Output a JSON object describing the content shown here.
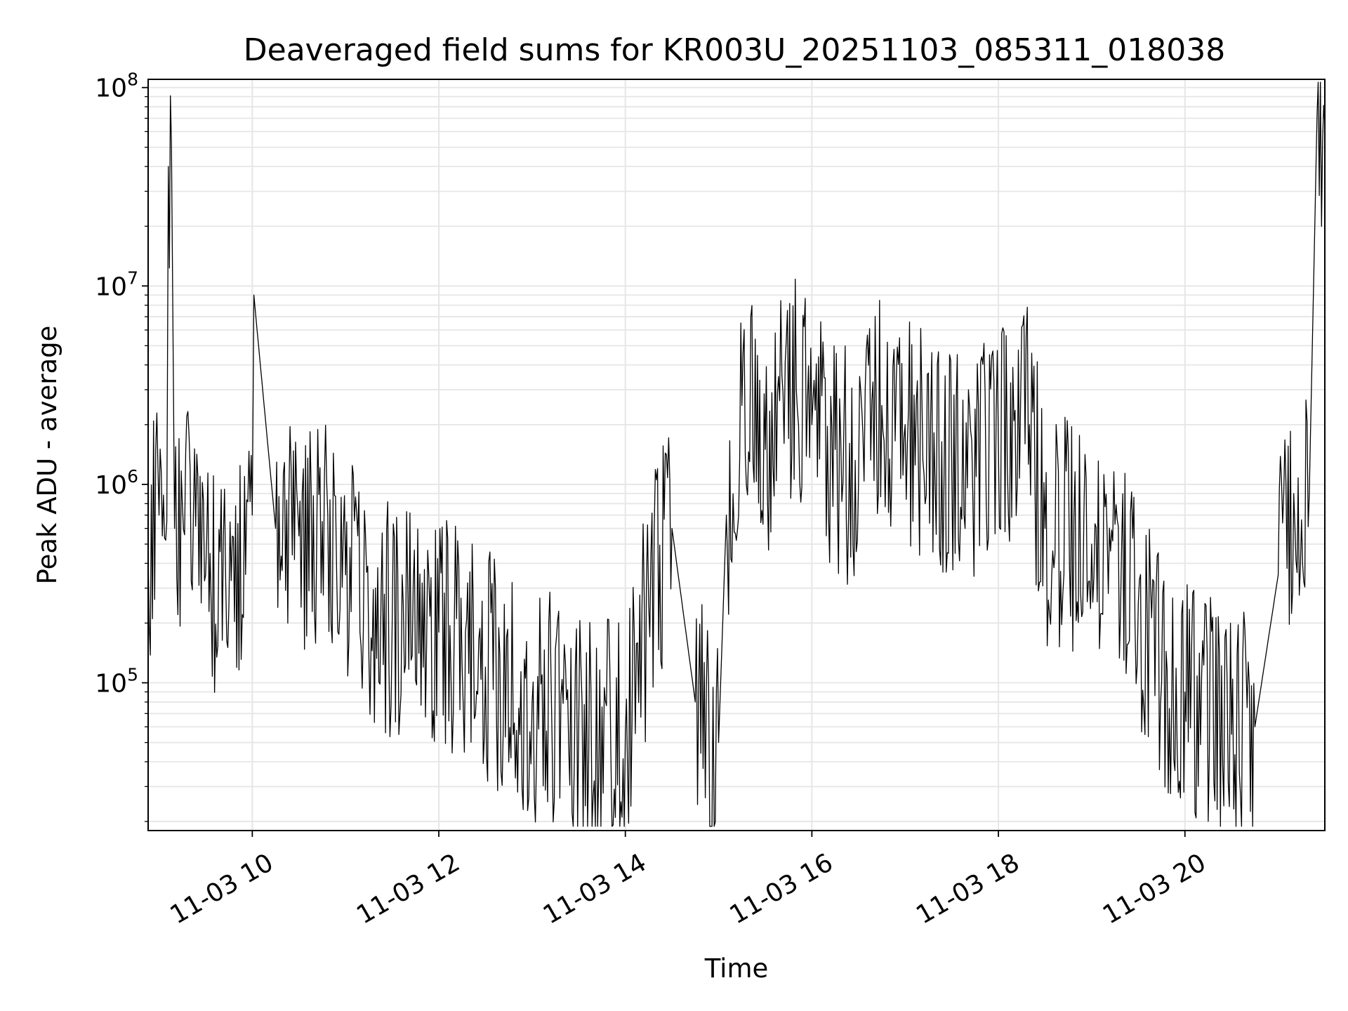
{
  "chart_data": {
    "type": "line",
    "title": "Deaveraged field sums for KR003U_20251103_085311_018038",
    "xlabel": "Time",
    "ylabel": "Peak ADU - average",
    "y_scale": "log",
    "ylim": [
      18000,
      110000000
    ],
    "xlim": [
      "2025-11-03 08:53",
      "2025-11-03 21:30"
    ],
    "grid": true,
    "line_color": "#000000",
    "grid_color": "#e6e6e6",
    "x_ticks": [
      {
        "value": "2025-11-03 10:00",
        "label": "11-03 10"
      },
      {
        "value": "2025-11-03 12:00",
        "label": "11-03 12"
      },
      {
        "value": "2025-11-03 14:00",
        "label": "11-03 14"
      },
      {
        "value": "2025-11-03 16:00",
        "label": "11-03 16"
      },
      {
        "value": "2025-11-03 18:00",
        "label": "11-03 18"
      },
      {
        "value": "2025-11-03 20:00",
        "label": "11-03 20"
      }
    ],
    "y_ticks": [
      {
        "value": 100000,
        "base": "10",
        "exp": "5"
      },
      {
        "value": 1000000,
        "base": "10",
        "exp": "6"
      },
      {
        "value": 10000000,
        "base": "10",
        "exp": "7"
      },
      {
        "value": 100000000,
        "base": "10",
        "exp": "8"
      }
    ],
    "series": [
      {
        "points": [
          [
            "2025-11-03 08:53",
            450000
          ],
          [
            "2025-11-03 09:00",
            700000
          ],
          [
            "2025-11-03 09:05",
            650000
          ],
          [
            "2025-11-03 09:06",
            40000000
          ],
          [
            "2025-11-03 09:08",
            52000000
          ],
          [
            "2025-11-03 09:10",
            600000
          ],
          [
            "2025-11-03 09:15",
            800000
          ],
          [
            "2025-11-03 09:20",
            1200000
          ],
          [
            "2025-11-03 09:25",
            1100000
          ],
          [
            "2025-11-03 09:30",
            350000
          ],
          [
            "2025-11-03 09:45",
            250000
          ],
          [
            "2025-11-03 10:00",
            700000
          ],
          [
            "2025-11-03 10:01",
            9000000
          ],
          [
            "2025-11-03 10:15",
            600000
          ],
          [
            "2025-11-03 10:30",
            550000
          ],
          [
            "2025-11-03 10:45",
            650000
          ],
          [
            "2025-11-03 11:00",
            350000
          ],
          [
            "2025-11-03 11:30",
            200000
          ],
          [
            "2025-11-03 12:00",
            180000
          ],
          [
            "2025-11-03 12:30",
            120000
          ],
          [
            "2025-11-03 13:00",
            80000
          ],
          [
            "2025-11-03 13:30",
            60000
          ],
          [
            "2025-11-03 14:00",
            55000
          ],
          [
            "2025-11-03 14:15",
            250000
          ],
          [
            "2025-11-03 14:30",
            600000
          ],
          [
            "2025-11-03 14:45",
            80000
          ],
          [
            "2025-11-03 15:00",
            50000
          ],
          [
            "2025-11-03 15:05",
            700000
          ],
          [
            "2025-11-03 15:15",
            2500000
          ],
          [
            "2025-11-03 15:30",
            1500000
          ],
          [
            "2025-11-03 15:50",
            3000000
          ],
          [
            "2025-11-03 16:00",
            2000000
          ],
          [
            "2025-11-03 16:15",
            1500000
          ],
          [
            "2025-11-03 16:30",
            1000000
          ],
          [
            "2025-11-03 16:45",
            2500000
          ],
          [
            "2025-11-03 17:00",
            2000000
          ],
          [
            "2025-11-03 17:30",
            1200000
          ],
          [
            "2025-11-03 18:00",
            1500000
          ],
          [
            "2025-11-03 18:20",
            2000000
          ],
          [
            "2025-11-03 18:30",
            600000
          ],
          [
            "2025-11-03 19:00",
            500000
          ],
          [
            "2025-11-03 19:30",
            250000
          ],
          [
            "2025-11-03 19:45",
            100000
          ],
          [
            "2025-11-03 20:00",
            90000
          ],
          [
            "2025-11-03 20:30",
            55000
          ],
          [
            "2025-11-03 20:45",
            60000
          ],
          [
            "2025-11-03 21:00",
            350000
          ],
          [
            "2025-11-03 21:10",
            900000
          ],
          [
            "2025-11-03 21:20",
            900000
          ],
          [
            "2025-11-03 21:25",
            72000000
          ],
          [
            "2025-11-03 21:30",
            65000000
          ]
        ]
      }
    ]
  }
}
